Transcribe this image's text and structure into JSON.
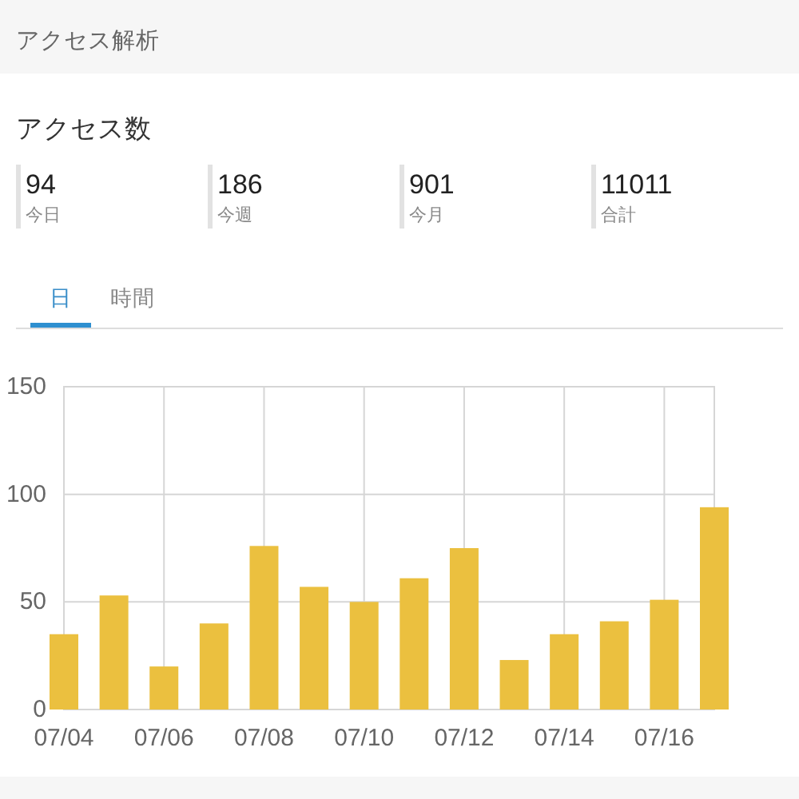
{
  "chart_data": [
    {
      "type": "other",
      "title": "アクセス解析",
      "subtitle": "アクセス数",
      "categories": [
        "今日",
        "今週",
        "今月",
        "合計"
      ],
      "values": [
        94,
        186,
        901,
        11011
      ],
      "data_labels": true
    },
    {
      "type": "bar",
      "annotations": [
        "日",
        "時間"
      ],
      "categories": [
        "07/04",
        null,
        "07/06",
        null,
        "07/08",
        null,
        "07/10",
        null,
        "07/12",
        null,
        "07/14",
        null,
        "07/16",
        null
      ],
      "values": [
        35,
        53,
        20,
        40,
        76,
        57,
        50,
        61,
        75,
        23,
        35,
        41,
        51,
        94
      ],
      "color": "#ebc03f",
      "ylim": [
        0,
        150
      ],
      "yticks": [
        0,
        50,
        100,
        150
      ],
      "grid": true
    }
  ]
}
